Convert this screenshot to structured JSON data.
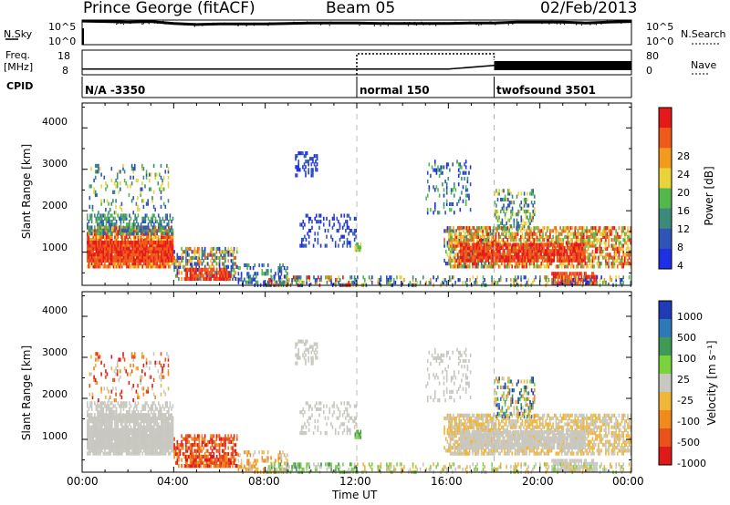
{
  "header": {
    "station": "Prince George (fitACF)",
    "beam": "Beam 05",
    "date": "02/Feb/2013"
  },
  "left_labels": {
    "nsky": "N.Sky",
    "nsky_top": "10^5",
    "nsky_bottom": "10^0",
    "freq": "Freq.",
    "freq_unit": "[MHz]",
    "freq_top": "18",
    "freq_bottom": "8",
    "cpid": "CPID"
  },
  "right_labels": {
    "nsearch": "N.Search",
    "nsearch_top": "10^5",
    "nsearch_bottom": "10^0",
    "nave": "Nave",
    "nave_top": "80",
    "nave_bottom": "0"
  },
  "cpid_segments": [
    {
      "label": "N/A -3350",
      "start_ut": 0
    },
    {
      "label": "normal 150",
      "start_ut": 12
    },
    {
      "label": "twofsound 3501",
      "start_ut": 18
    }
  ],
  "colors": {
    "power": [
      "#1f2fe6",
      "#2f55b8",
      "#3b8a7a",
      "#52b84c",
      "#e8d33a",
      "#f29a1d",
      "#ee5a1a",
      "#e6191a"
    ],
    "velocity": [
      "#1f3bb8",
      "#2e7ab8",
      "#3f9a56",
      "#7bd23f",
      "#c8c8c0",
      "#f0b63a",
      "#f08a1d",
      "#e9531a",
      "#e0191a"
    ]
  },
  "chart_data": [
    {
      "type": "line",
      "title": "N.Sky / N.Search",
      "x": [
        0,
        1,
        2,
        3,
        4,
        5,
        6,
        7,
        8,
        9,
        10,
        11,
        12,
        13,
        14,
        15,
        16,
        17,
        18,
        19,
        20,
        21,
        22,
        23,
        24
      ],
      "series": [
        {
          "name": "N.Sky",
          "values": [
            4.8,
            4.7,
            4.6,
            4.7,
            4.3,
            4.1,
            4.2,
            4.2,
            4.2,
            4.3,
            4.4,
            4.4,
            4.4,
            4.3,
            4.3,
            4.3,
            4.3,
            4.4,
            4.4,
            4.6,
            4.6,
            4.6,
            4.4,
            4.6,
            4.7
          ]
        }
      ],
      "ylim": [
        0,
        5
      ],
      "log_scale": true
    },
    {
      "type": "line",
      "title": "Freq / Nave",
      "x": [
        0,
        4,
        8,
        12,
        16,
        18,
        20,
        24
      ],
      "series": [
        {
          "name": "Freq",
          "values": [
            10.3,
            10.3,
            10.3,
            10.3,
            10.3,
            11.8,
            11.8,
            11.8
          ]
        },
        {
          "name": "Nave",
          "values": [
            null,
            null,
            null,
            80,
            80,
            null,
            null,
            null
          ]
        }
      ],
      "ylim": [
        8,
        18
      ],
      "y2lim": [
        0,
        80
      ]
    },
    {
      "type": "heatmap",
      "title": "Power [dB]",
      "ylabel": "Slant Range [km]",
      "xlabel": "Time UT",
      "x_ticks": [
        "00:00",
        "04:00",
        "08:00",
        "12:00",
        "16:00",
        "20:00",
        "00:00"
      ],
      "y_ticks": [
        "1000",
        "2000",
        "3000",
        "4000"
      ],
      "xlim": [
        0,
        24
      ],
      "ylim": [
        200,
        4600
      ],
      "colorbar_label": "Power [dB]",
      "colorbar_ticks": [
        "28",
        "24",
        "20",
        "16",
        "12",
        "8",
        "4"
      ],
      "zlim": [
        0,
        32
      ]
    },
    {
      "type": "heatmap",
      "title": "Velocity [m s^-1]",
      "ylabel": "Slant Range [km]",
      "xlabel": "Time UT",
      "x_ticks": [
        "00:00",
        "04:00",
        "08:00",
        "12:00",
        "16:00",
        "20:00",
        "00:00"
      ],
      "y_ticks": [
        "1000",
        "2000",
        "3000",
        "4000"
      ],
      "xlim": [
        0,
        24
      ],
      "ylim": [
        200,
        4600
      ],
      "colorbar_label": "Velocity [m s⁻¹]",
      "colorbar_ticks": [
        "1000",
        "500",
        "100",
        "25",
        "-25",
        "-100",
        "-500",
        "-1000"
      ]
    }
  ],
  "axis": {
    "xlabel": "Time UT",
    "ylabel": "Slant Range [km]",
    "x_ticks": [
      "00:00",
      "04:00",
      "08:00",
      "12:00",
      "16:00",
      "20:00",
      "00:00"
    ],
    "y_ticks": [
      "1000",
      "2000",
      "3000",
      "4000"
    ],
    "power_label": "Power [dB]",
    "power_ticks": [
      "28",
      "24",
      "20",
      "16",
      "12",
      "8",
      "4"
    ],
    "velocity_label": "Velocity [m s⁻¹]",
    "velocity_ticks": [
      "1000",
      "500",
      "100",
      "25",
      "-25",
      "-100",
      "-500",
      "-1000"
    ]
  }
}
